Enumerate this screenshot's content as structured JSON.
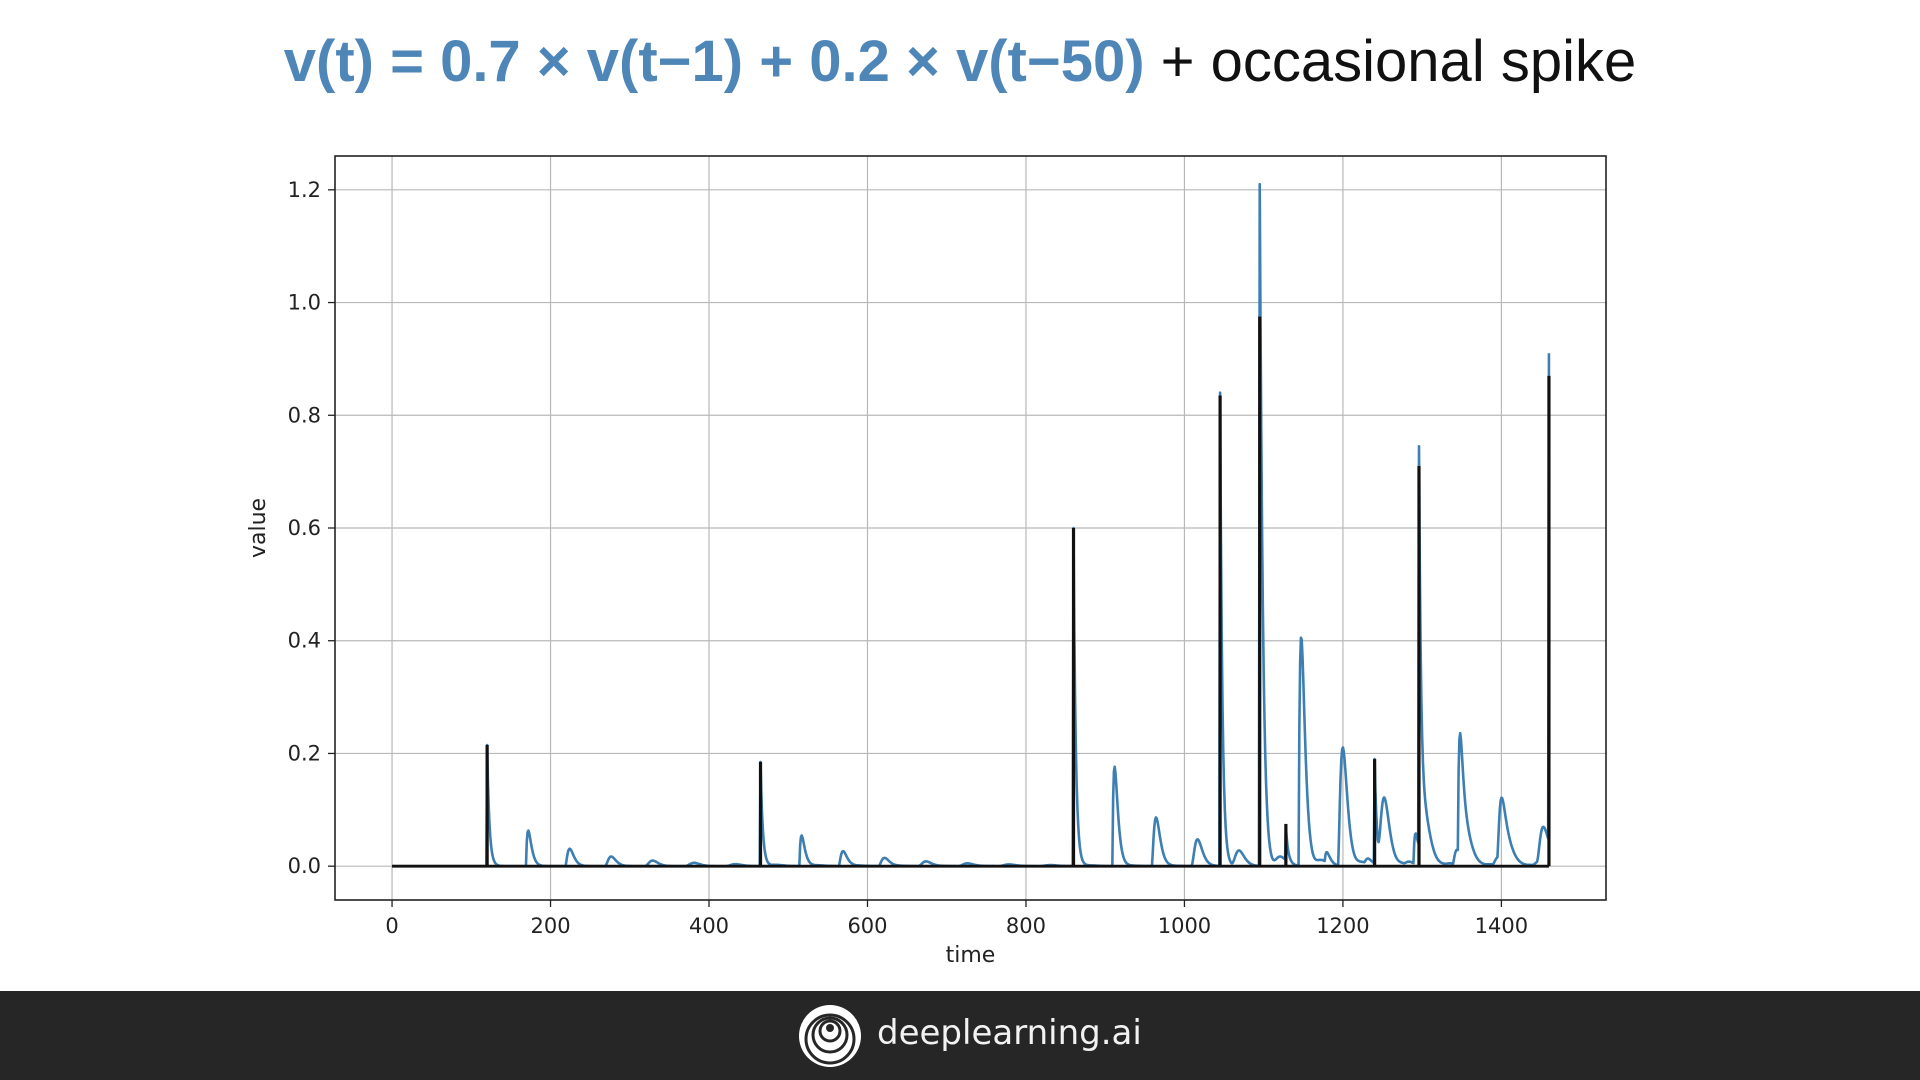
{
  "slide": {
    "title_formula": "v(t) = 0.7 × v(t−1) + 0.2 × v(t−50)",
    "title_rest": " + occasional spike"
  },
  "footer": {
    "brand": "deeplearning.ai"
  },
  "colors": {
    "series_blue": "#3d7fb3",
    "series_black": "#111111",
    "title_blue": "#4f86b8",
    "footer_bg": "#262626"
  },
  "chart_data": {
    "type": "line",
    "xlabel": "time",
    "ylabel": "value",
    "xlim": [
      -72,
      1532
    ],
    "ylim": [
      -0.06,
      1.26
    ],
    "xticks": [
      0,
      200,
      400,
      600,
      800,
      1000,
      1200,
      1400
    ],
    "yticks": [
      0.0,
      0.2,
      0.4,
      0.6,
      0.8,
      1.0,
      1.2
    ],
    "grid": true,
    "x_end": 1460,
    "series": [
      {
        "color": "#3d7fb3",
        "events": [
          {
            "x": 120,
            "peak": 0.215
          },
          {
            "x": 465,
            "peak": 0.185
          },
          {
            "x": 860,
            "peak": 0.6
          },
          {
            "x": 1045,
            "peak": 0.84
          },
          {
            "x": 1095,
            "peak": 1.21
          },
          {
            "x": 1128,
            "peak": 0.07
          },
          {
            "x": 1240,
            "peak": 0.19
          },
          {
            "x": 1296,
            "peak": 0.745
          },
          {
            "x": 1460,
            "peak": 0.91
          }
        ]
      },
      {
        "color": "#111111",
        "spikes": [
          {
            "x": 120,
            "y": 0.215
          },
          {
            "x": 465,
            "y": 0.185
          },
          {
            "x": 860,
            "y": 0.6
          },
          {
            "x": 1045,
            "y": 0.835
          },
          {
            "x": 1095,
            "y": 0.975
          },
          {
            "x": 1128,
            "y": 0.075
          },
          {
            "x": 1240,
            "y": 0.19
          },
          {
            "x": 1296,
            "y": 0.71
          },
          {
            "x": 1460,
            "y": 0.87
          }
        ]
      }
    ]
  }
}
